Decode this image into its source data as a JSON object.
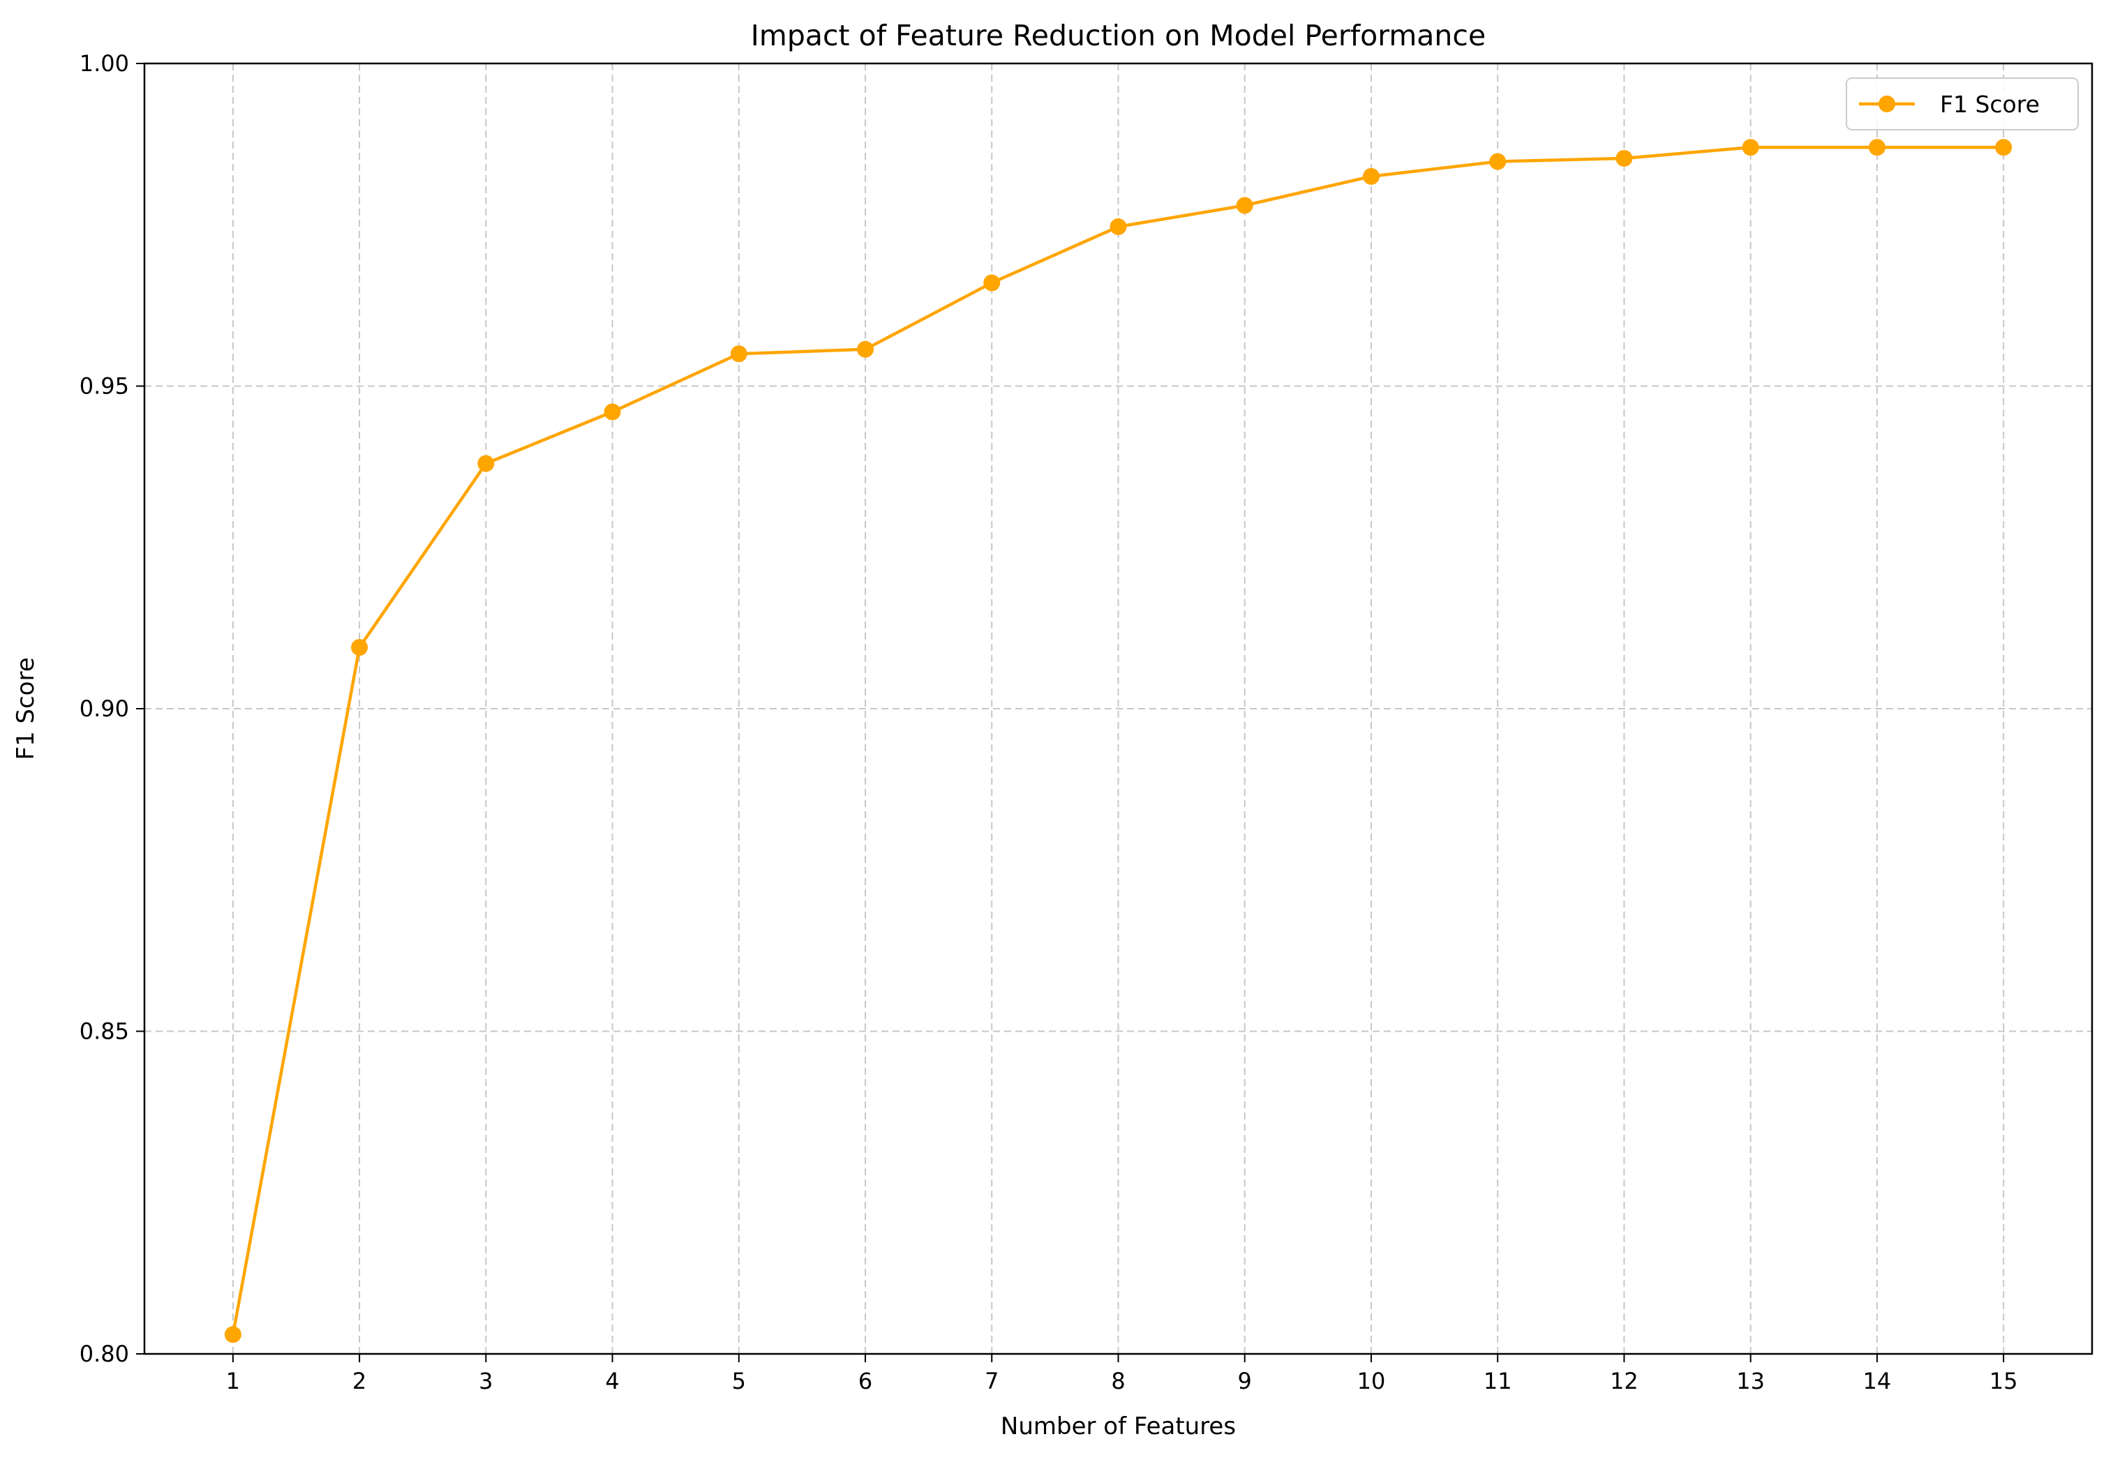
{
  "chart_data": {
    "type": "line",
    "title": "Impact of Feature Reduction on Model Performance",
    "xlabel": "Number of Features",
    "ylabel": "F1 Score",
    "x": [
      1,
      2,
      3,
      4,
      5,
      6,
      7,
      8,
      9,
      10,
      11,
      12,
      13,
      14,
      15
    ],
    "series": [
      {
        "name": "F1 Score",
        "color": "#ffa500",
        "marker": "circle",
        "values": [
          0.803,
          0.9095,
          0.938,
          0.946,
          0.955,
          0.9557,
          0.966,
          0.9747,
          0.978,
          0.9825,
          0.9848,
          0.9853,
          0.987,
          0.987,
          0.987
        ]
      }
    ],
    "xticks": [
      1,
      2,
      3,
      4,
      5,
      6,
      7,
      8,
      9,
      10,
      11,
      12,
      13,
      14,
      15
    ],
    "yticks": [
      "0.80",
      "0.85",
      "0.90",
      "0.95",
      "1.00"
    ],
    "xlim": [
      0.3,
      15.7
    ],
    "ylim": [
      0.8,
      1.0
    ],
    "grid": true,
    "legend_position": "top-right"
  }
}
